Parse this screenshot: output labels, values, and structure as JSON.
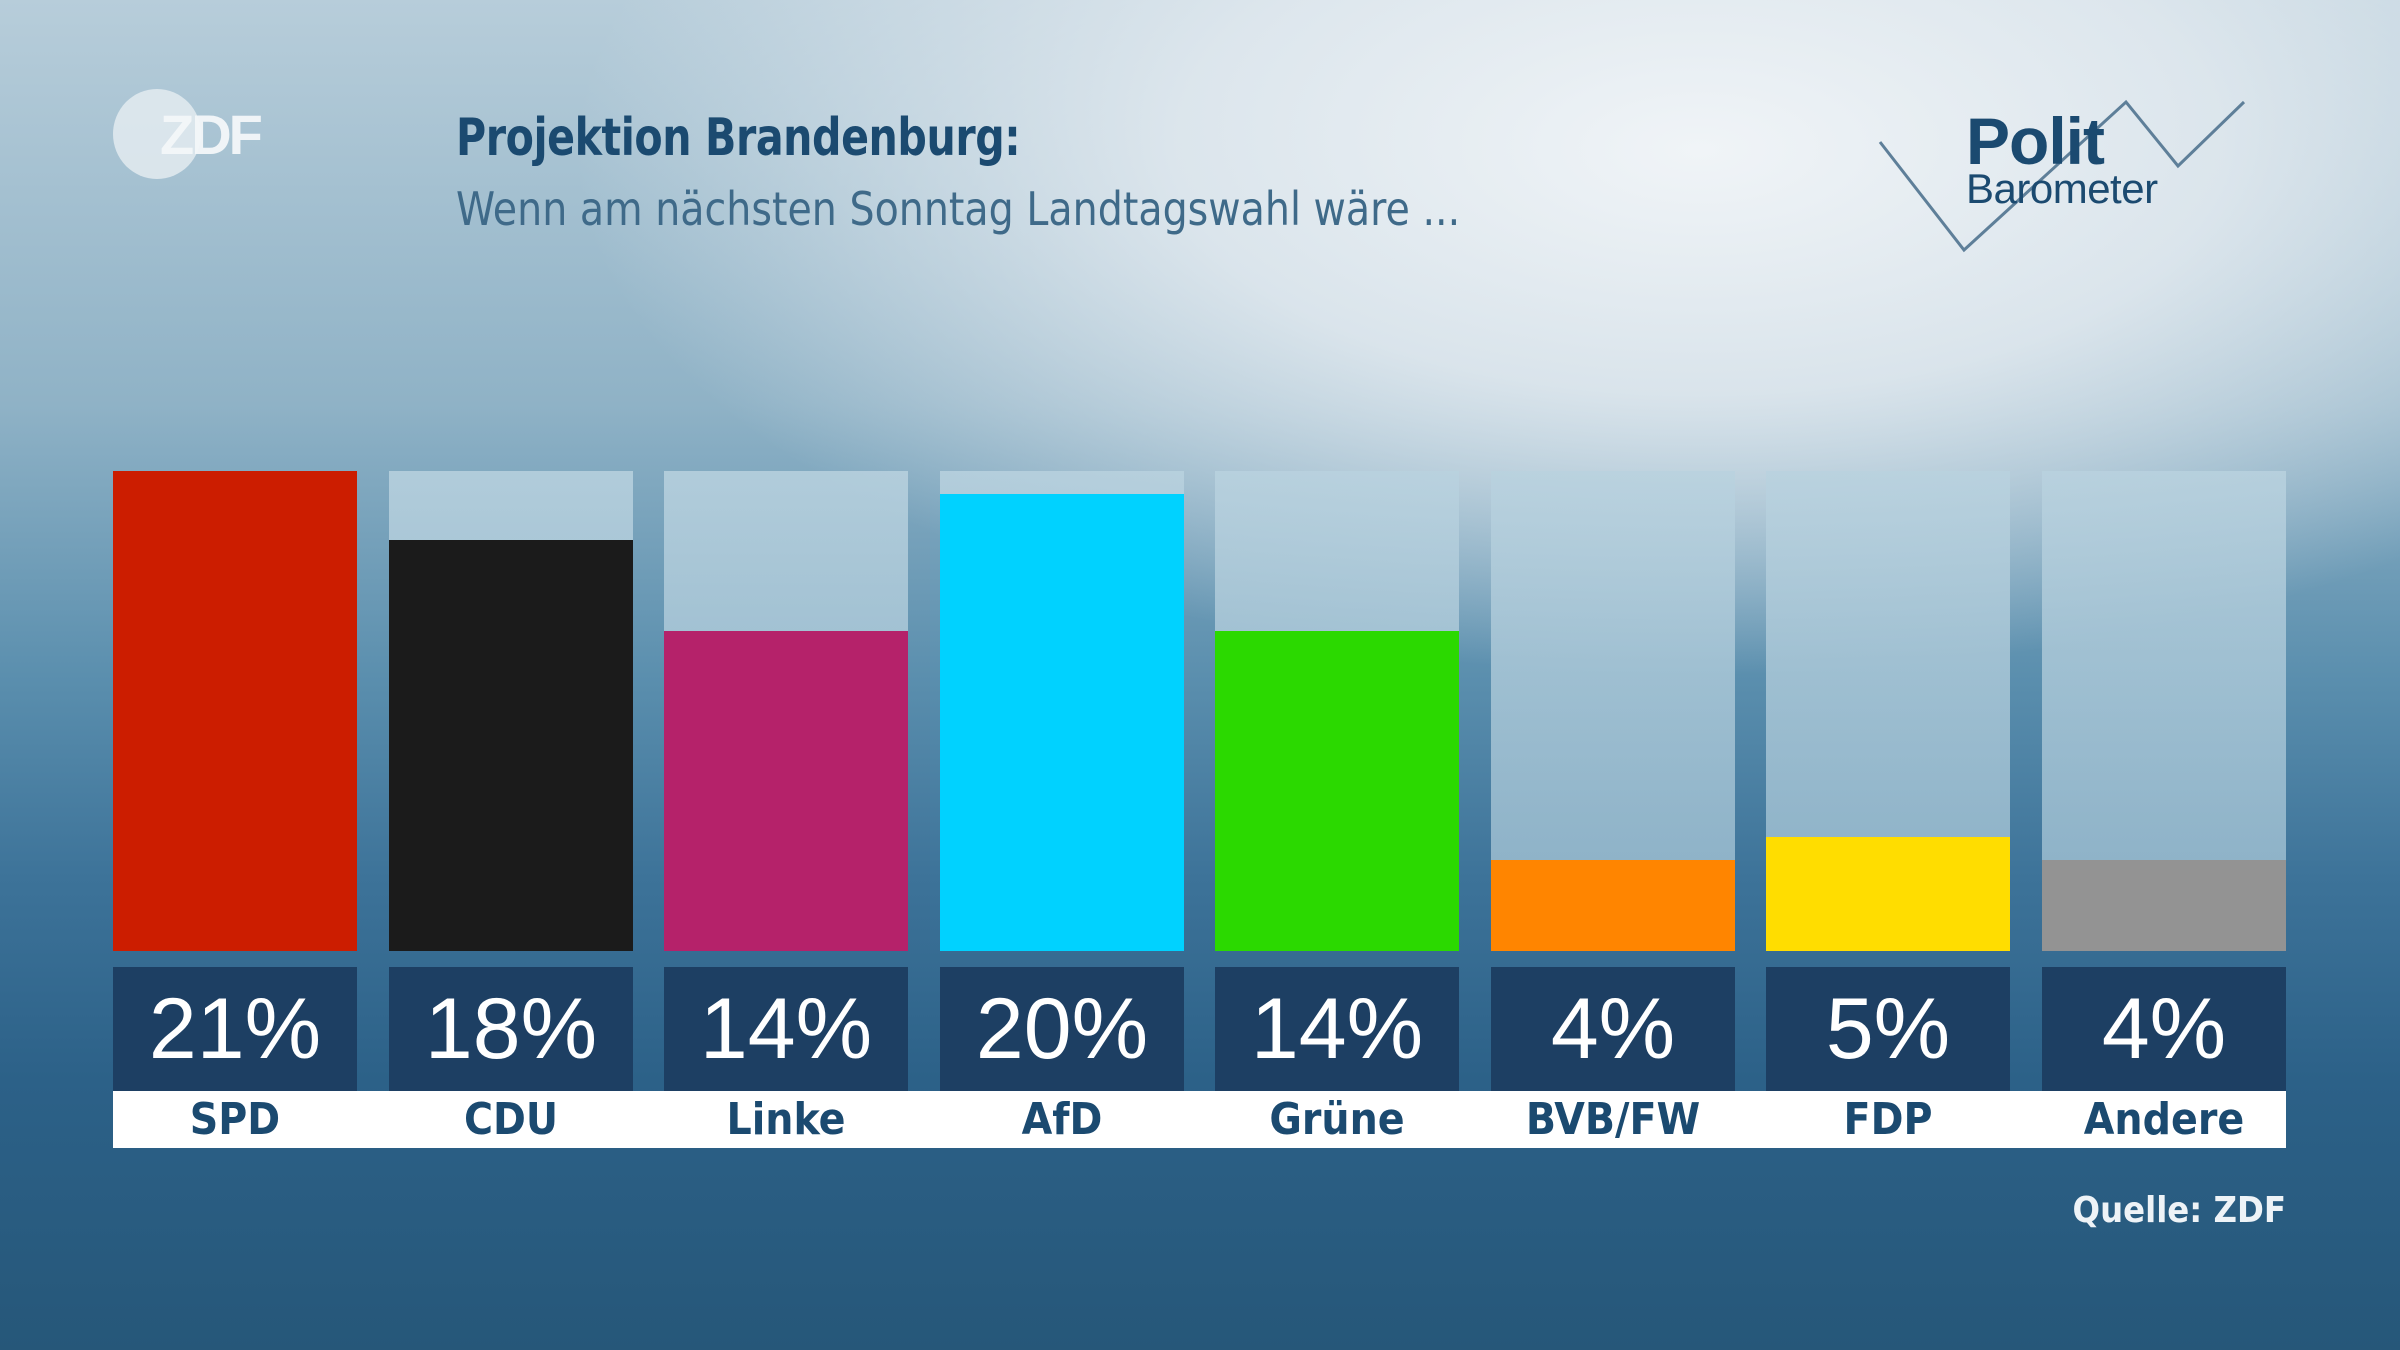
{
  "header": {
    "logo_text": "ZDF",
    "title": "Projektion Brandenburg:",
    "subtitle": "Wenn am nächsten Sonntag Landtagswahl wäre ...",
    "brand_line1": "Polit",
    "brand_line2": "Barometer"
  },
  "footer": {
    "source": "Quelle: ZDF"
  },
  "chart_data": {
    "type": "bar",
    "title": "Projektion Brandenburg:",
    "subtitle": "Wenn am nächsten Sonntag Landtagswahl wäre ...",
    "xlabel": "",
    "ylabel": "",
    "ylim": [
      0,
      21
    ],
    "grid": false,
    "unit": "%",
    "categories": [
      "SPD",
      "CDU",
      "Linke",
      "AfD",
      "Grüne",
      "BVB/FW",
      "FDP",
      "Andere"
    ],
    "values": [
      21,
      18,
      14,
      20,
      14,
      4,
      5,
      4
    ],
    "value_labels": [
      "21%",
      "18%",
      "14%",
      "20%",
      "14%",
      "4%",
      "5%",
      "4%"
    ],
    "colors": [
      "#cc1d00",
      "#1b1b1b",
      "#b5226a",
      "#00d2ff",
      "#2bd900",
      "#ff8500",
      "#ffdd00",
      "#939393"
    ]
  }
}
